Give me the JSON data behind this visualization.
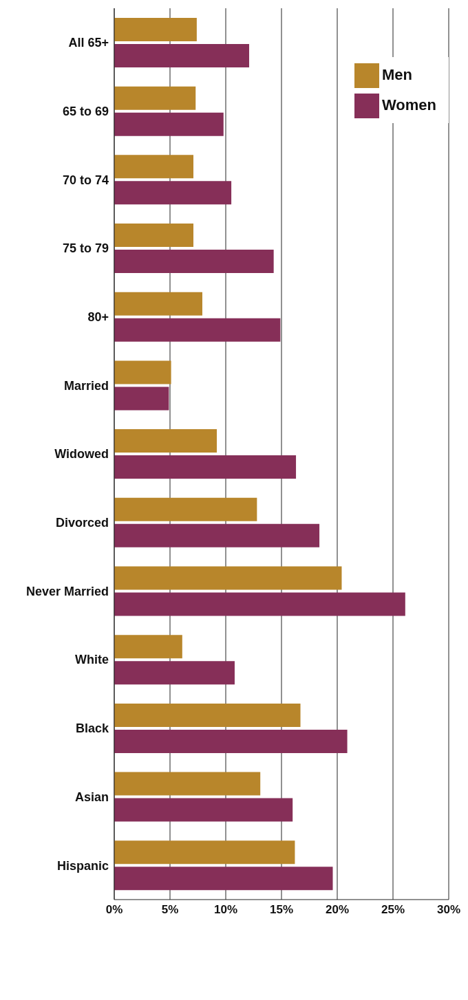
{
  "chart_data": {
    "type": "bar",
    "orientation": "horizontal",
    "categories": [
      "All 65+",
      "65 to 69",
      "70 to 74",
      "75 to 79",
      "80+",
      "Married",
      "Widowed",
      "Divorced",
      "Never Married",
      "White",
      "Black",
      "Asian",
      "Hispanic"
    ],
    "series": [
      {
        "name": "Men",
        "color": "#b8862b",
        "values": [
          7.4,
          7.3,
          7.1,
          7.1,
          7.9,
          5.1,
          9.2,
          12.8,
          20.4,
          6.1,
          16.7,
          13.1,
          16.2
        ]
      },
      {
        "name": "Women",
        "color": "#862f58",
        "values": [
          12.1,
          9.8,
          10.5,
          14.3,
          14.9,
          4.9,
          16.3,
          18.4,
          26.1,
          10.8,
          20.9,
          16.0,
          19.6
        ]
      }
    ],
    "xlim": [
      0,
      30
    ],
    "xticks": [
      {
        "value": 0,
        "label": "0%"
      },
      {
        "value": 5,
        "label": "5%"
      },
      {
        "value": 10,
        "label": "10%"
      },
      {
        "value": 15,
        "label": "15%"
      },
      {
        "value": 20,
        "label": "20%"
      },
      {
        "value": 25,
        "label": "25%"
      },
      {
        "value": 30,
        "label": "30%"
      }
    ],
    "grid": "x",
    "legend": "top right"
  }
}
